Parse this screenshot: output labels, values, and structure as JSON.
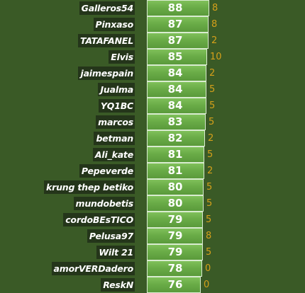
{
  "chart_data": {
    "type": "bar",
    "orientation": "horizontal",
    "categories": [
      "Galleros54",
      "Pinxaso",
      "TATAFANEL",
      "Elvis",
      "jaimespain",
      "Jualma",
      "YQ1BC",
      "marcos",
      "betman",
      "Ali_kate",
      "Pepeverde",
      "krung thep betiko",
      "mundobetis",
      "cordoBEsTICO",
      "Pelusa97",
      "Wilt 21",
      "amorVERDadero",
      "ReskN"
    ],
    "series": [
      {
        "values": [
          88,
          87,
          87,
          85,
          84,
          84,
          84,
          83,
          82,
          81,
          81,
          80,
          80,
          79,
          79,
          79,
          78,
          76
        ]
      },
      {
        "values": [
          8,
          8,
          2,
          10,
          2,
          5,
          5,
          5,
          2,
          5,
          2,
          5,
          5,
          5,
          8,
          5,
          0,
          0
        ]
      }
    ],
    "colors": {
      "background": "#3a5a26",
      "label_background": "#24351a",
      "bar": "#6aac47",
      "bar_border": "#d9ecd0",
      "extra_text": "#d4a01a",
      "text": "#ffffff"
    }
  }
}
